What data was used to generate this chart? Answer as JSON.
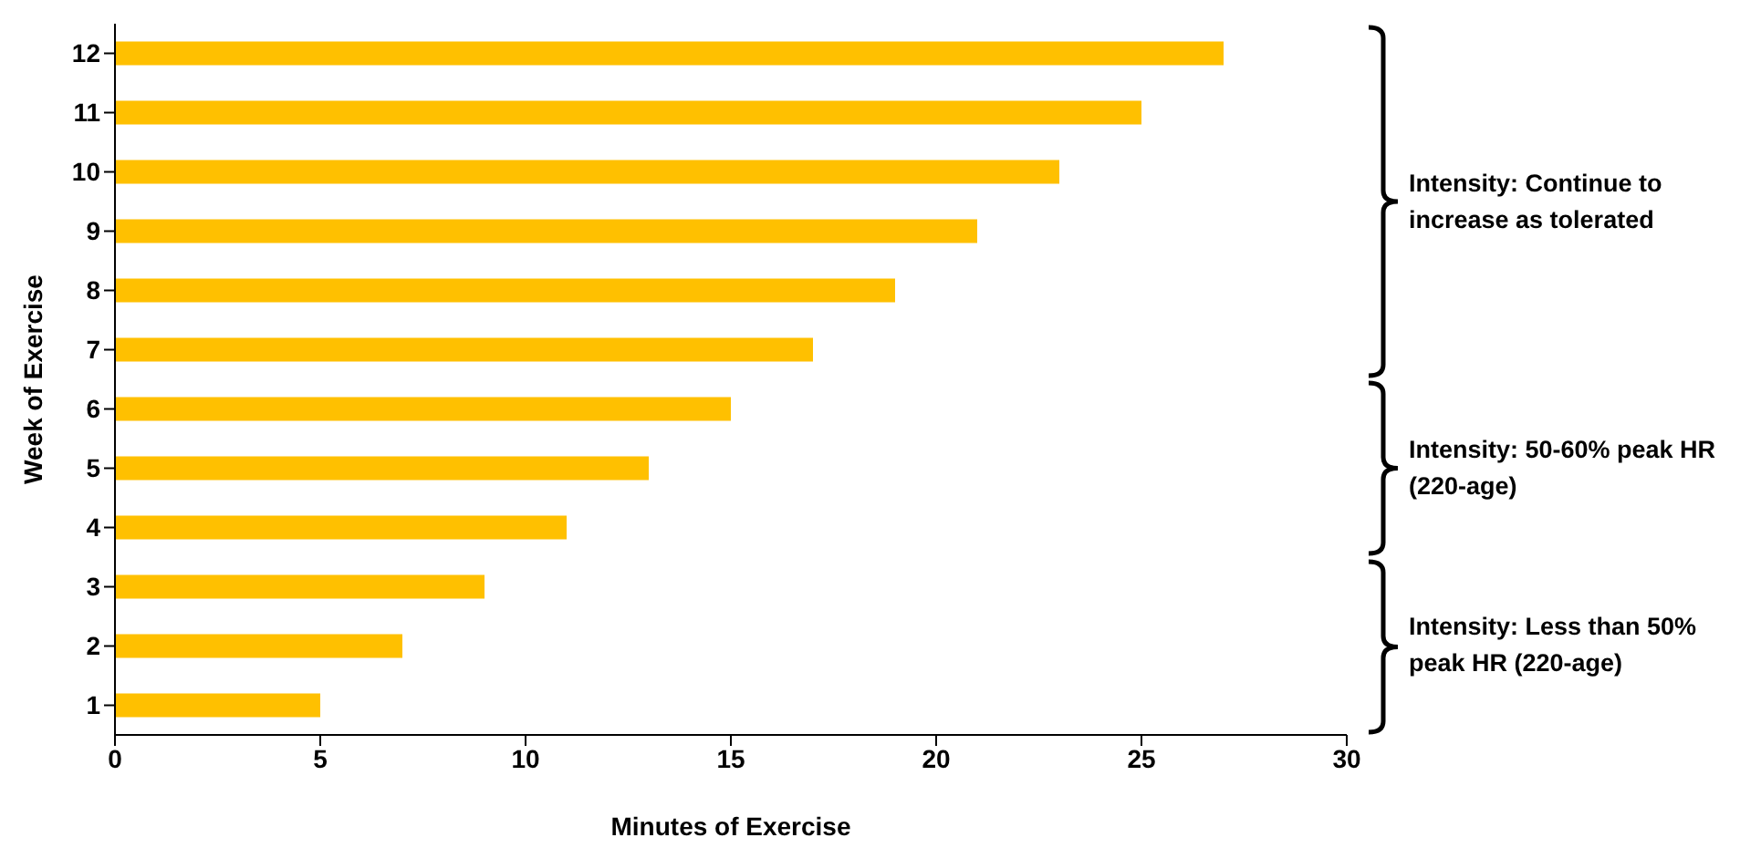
{
  "chart_data": {
    "type": "bar",
    "orientation": "horizontal",
    "xlabel": "Minutes of Exercise",
    "ylabel": "Week of Exercise",
    "categories": [
      "12",
      "11",
      "10",
      "9",
      "8",
      "7",
      "6",
      "5",
      "4",
      "3",
      "2",
      "1"
    ],
    "values": [
      27,
      25,
      23,
      21,
      19,
      17,
      15,
      13,
      11,
      9,
      7,
      5
    ],
    "color": "#ffc000",
    "xlim": [
      0,
      30
    ],
    "xticks": [
      0,
      5,
      10,
      15,
      20,
      25,
      30
    ],
    "grid": false,
    "annotations": [
      "Intensity: Continue to increase as tolerated",
      "Intensity: 50-60% peak HR (220-age)",
      "Intensity: Less than 50% peak HR (220-age)"
    ]
  }
}
